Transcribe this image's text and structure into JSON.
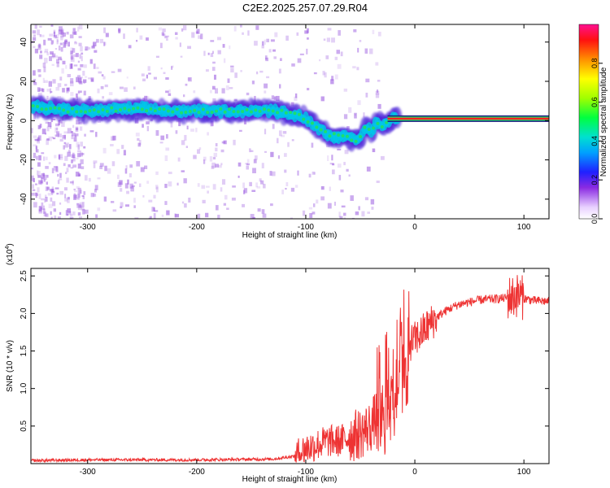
{
  "title": "C2E2.2025.257.07.29.R04",
  "colors": {
    "axis": "#000000",
    "snr_line": "#ee3333",
    "spec_low": "#d9c4f5",
    "spec_mid": "#3020e0",
    "spec_high": "#00d0c0",
    "band_peak": "#ff2020"
  },
  "colorbar": {
    "label": "Normalized spectral amplitude",
    "ticks": [
      "0.0",
      "0.2",
      "0.4",
      "0.6",
      "0.8"
    ],
    "range": [
      0,
      1
    ]
  },
  "chart_data": [
    {
      "type": "heatmap",
      "title": "C2E2.2025.257.07.29.R04",
      "xlabel": "Height of straight line (km)",
      "ylabel": "Frequency (Hz)",
      "xlim": [
        -352,
        123
      ],
      "ylim": [
        -50,
        49
      ],
      "xticks": [
        -300,
        -200,
        -100,
        0,
        100
      ],
      "yticks": [
        -40,
        -20,
        0,
        20,
        40
      ],
      "ridge": {
        "x": [
          -350,
          -330,
          -310,
          -290,
          -270,
          -250,
          -230,
          -210,
          -190,
          -170,
          -150,
          -130,
          -120,
          -110,
          -100,
          -90,
          -80,
          -70,
          -60,
          -55,
          -50,
          -45,
          -40,
          -35,
          -30,
          -20,
          -10,
          0,
          20,
          50,
          80,
          100,
          123
        ],
        "frequency": [
          7,
          6,
          5,
          5,
          6,
          6,
          5,
          5,
          5,
          5,
          5,
          5,
          4,
          3,
          1,
          -3,
          -7,
          -8,
          -9,
          -10,
          -9,
          -3,
          -6,
          0,
          -3,
          1,
          1,
          1,
          1,
          1,
          1,
          1,
          1
        ]
      }
    },
    {
      "type": "line",
      "xlabel": "Height of straight line (km)",
      "ylabel": "SNR (10 * v/v)",
      "multiplier_label": "(x10",
      "multiplier_exp": "4",
      "xlim": [
        -352,
        123
      ],
      "ylim": [
        0,
        2.6
      ],
      "xticks": [
        -300,
        -200,
        -100,
        0,
        100
      ],
      "yticks": [
        "0.5",
        "1.0",
        "1.5",
        "2.0",
        "2.5"
      ],
      "series": [
        {
          "x": [
            -352,
            -300,
            -200,
            -130,
            -110,
            -100,
            -90,
            -80,
            -70,
            -60,
            -50,
            -40,
            -30,
            -25,
            -20,
            -15,
            -10,
            -5,
            0,
            10,
            20,
            30,
            40,
            60,
            80,
            90,
            95,
            100,
            110,
            123
          ],
          "y": [
            0.04,
            0.05,
            0.05,
            0.06,
            0.1,
            0.2,
            0.25,
            0.3,
            0.3,
            0.35,
            0.4,
            0.5,
            0.8,
            1.0,
            1.3,
            1.5,
            1.55,
            1.6,
            1.65,
            1.8,
            1.95,
            2.05,
            2.12,
            2.18,
            2.2,
            2.22,
            2.25,
            2.2,
            2.17,
            2.16
          ]
        }
      ]
    }
  ]
}
